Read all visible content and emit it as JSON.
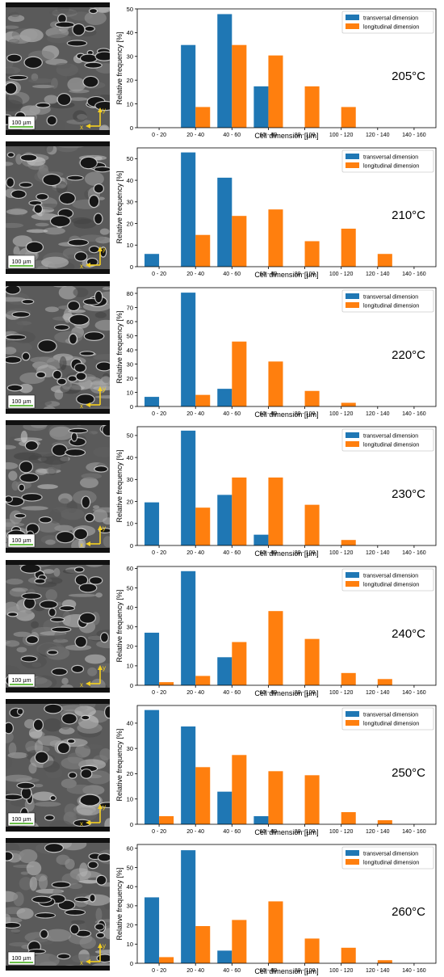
{
  "colors": {
    "transversal": "#1f77b4",
    "longitudinal": "#ff7f0e"
  },
  "scale_bar_label": "100 µm",
  "axis_glyphs": {
    "x": "x",
    "y": "y"
  },
  "chart_data": [
    {
      "type": "bar",
      "annotation": "205°C",
      "categories": [
        "0 - 20",
        "20 - 40",
        "40 - 60",
        "60 - 80",
        "80 - 100",
        "100 - 120",
        "120 - 140",
        "140 - 160"
      ],
      "series": [
        {
          "name": "transversal dimension",
          "values": [
            0,
            34.8,
            47.8,
            17.4,
            0,
            0,
            0,
            0
          ]
        },
        {
          "name": "longitudinal dimension",
          "values": [
            0,
            8.7,
            34.8,
            30.4,
            17.4,
            8.7,
            0,
            0
          ]
        }
      ],
      "xlabel": "Cell dimension [µm]",
      "ylabel": "Relative frequency [%]",
      "ylim": [
        0,
        50
      ],
      "yticks": [
        0,
        10,
        20,
        30,
        40,
        50
      ],
      "legend": "top-right",
      "grid": false
    },
    {
      "type": "bar",
      "annotation": "210°C",
      "categories": [
        "0 - 20",
        "20 - 40",
        "40 - 60",
        "60 - 80",
        "80 - 100",
        "100 - 120",
        "120 - 140",
        "140 - 160"
      ],
      "series": [
        {
          "name": "transversal dimension",
          "values": [
            5.9,
            52.9,
            41.2,
            0,
            0,
            0,
            0,
            0
          ]
        },
        {
          "name": "longitudinal dimension",
          "values": [
            0,
            14.7,
            23.5,
            26.5,
            11.8,
            17.6,
            5.9,
            0
          ]
        }
      ],
      "xlabel": "Cell dimension [µm]",
      "ylabel": "Relative frequency [%]",
      "ylim": [
        0,
        55
      ],
      "yticks": [
        0,
        10,
        20,
        30,
        40,
        50
      ],
      "legend": "top-right",
      "grid": false
    },
    {
      "type": "bar",
      "annotation": "220°C",
      "categories": [
        "0 - 20",
        "20 - 40",
        "40 - 60",
        "60 - 80",
        "80 - 100",
        "100 - 120",
        "120 - 140",
        "140 - 160"
      ],
      "series": [
        {
          "name": "transversal dimension",
          "values": [
            6.8,
            80.5,
            12.5,
            0,
            0,
            0,
            0,
            0
          ]
        },
        {
          "name": "longitudinal dimension",
          "values": [
            0,
            8.2,
            45.9,
            31.8,
            11.0,
            2.6,
            0,
            0
          ]
        }
      ],
      "xlabel": "Cell dimension [µm]",
      "ylabel": "Relative frequency [%]",
      "ylim": [
        0,
        84
      ],
      "yticks": [
        0,
        10,
        20,
        30,
        40,
        50,
        60,
        70,
        80
      ],
      "legend": "top-right",
      "grid": false
    },
    {
      "type": "bar",
      "annotation": "230°C",
      "categories": [
        "0 - 20",
        "20 - 40",
        "40 - 60",
        "60 - 80",
        "80 - 100",
        "100 - 120",
        "120 - 140",
        "140 - 160"
      ],
      "series": [
        {
          "name": "transversal dimension",
          "values": [
            19.6,
            52.2,
            23.0,
            4.9,
            0,
            0,
            0,
            0
          ]
        },
        {
          "name": "longitudinal dimension",
          "values": [
            0,
            17.2,
            30.9,
            30.9,
            18.5,
            2.5,
            0,
            0
          ]
        }
      ],
      "xlabel": "Cell dimension [µm]",
      "ylabel": "Relative frequency [%]",
      "ylim": [
        0,
        54
      ],
      "yticks": [
        0,
        10,
        20,
        30,
        40,
        50
      ],
      "legend": "top-right",
      "grid": false
    },
    {
      "type": "bar",
      "annotation": "240°C",
      "categories": [
        "0 - 20",
        "20 - 40",
        "40 - 60",
        "60 - 80",
        "80 - 100",
        "100 - 120",
        "120 - 140",
        "140 - 160"
      ],
      "series": [
        {
          "name": "transversal dimension",
          "values": [
            27.0,
            58.6,
            14.4,
            0,
            0,
            0,
            0,
            0
          ]
        },
        {
          "name": "longitudinal dimension",
          "values": [
            1.6,
            4.8,
            22.2,
            38.1,
            23.8,
            6.3,
            3.2,
            0
          ]
        }
      ],
      "xlabel": "Cell dimension [µm]",
      "ylabel": "Relative frequency [%]",
      "ylim": [
        0,
        61
      ],
      "yticks": [
        0,
        10,
        20,
        30,
        40,
        50,
        60
      ],
      "legend": "top-right",
      "grid": false
    },
    {
      "type": "bar",
      "annotation": "250°C",
      "categories": [
        "0 - 20",
        "20 - 40",
        "40 - 60",
        "60 - 80",
        "80 - 100",
        "100 - 120",
        "120 - 140",
        "140 - 160"
      ],
      "series": [
        {
          "name": "transversal dimension",
          "values": [
            45.2,
            38.7,
            12.9,
            3.2,
            0,
            0,
            0,
            0
          ]
        },
        {
          "name": "longitudinal dimension",
          "values": [
            3.2,
            22.6,
            27.4,
            21.0,
            19.4,
            4.8,
            1.6,
            0
          ]
        }
      ],
      "xlabel": "Cell dimension [µm]",
      "ylabel": "Relative frequency [%]",
      "ylim": [
        0,
        47
      ],
      "yticks": [
        0,
        10,
        20,
        30,
        40
      ],
      "legend": "top-right",
      "grid": false
    },
    {
      "type": "bar",
      "annotation": "260°C",
      "categories": [
        "0 - 20",
        "20 - 40",
        "40 - 60",
        "60 - 80",
        "80 - 100",
        "100 - 120",
        "120 - 140",
        "140 - 160"
      ],
      "series": [
        {
          "name": "transversal dimension",
          "values": [
            34.4,
            59.0,
            6.6,
            0,
            0,
            0,
            0,
            0
          ]
        },
        {
          "name": "longitudinal dimension",
          "values": [
            3.2,
            19.4,
            22.6,
            32.3,
            12.9,
            8.1,
            1.6,
            0
          ]
        }
      ],
      "xlabel": "Cell dimension [µm]",
      "ylabel": "Relative frequency [%]",
      "ylim": [
        0,
        62
      ],
      "yticks": [
        0,
        10,
        20,
        30,
        40,
        50,
        60
      ],
      "legend": "top-right",
      "grid": false
    }
  ]
}
